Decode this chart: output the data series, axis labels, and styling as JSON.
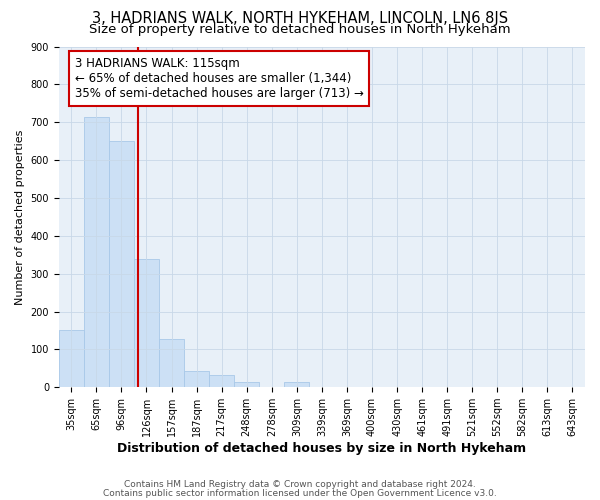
{
  "title1": "3, HADRIANS WALK, NORTH HYKEHAM, LINCOLN, LN6 8JS",
  "title2": "Size of property relative to detached houses in North Hykeham",
  "xlabel": "Distribution of detached houses by size in North Hykeham",
  "ylabel": "Number of detached properties",
  "footnote1": "Contains HM Land Registry data © Crown copyright and database right 2024.",
  "footnote2": "Contains public sector information licensed under the Open Government Licence v3.0.",
  "categories": [
    "35sqm",
    "65sqm",
    "96sqm",
    "126sqm",
    "157sqm",
    "187sqm",
    "217sqm",
    "248sqm",
    "278sqm",
    "309sqm",
    "339sqm",
    "369sqm",
    "400sqm",
    "430sqm",
    "461sqm",
    "491sqm",
    "521sqm",
    "552sqm",
    "582sqm",
    "613sqm",
    "643sqm"
  ],
  "values": [
    150,
    715,
    650,
    340,
    128,
    43,
    32,
    15,
    0,
    15,
    0,
    0,
    0,
    0,
    0,
    0,
    0,
    0,
    0,
    0,
    0
  ],
  "bar_color": "#cce0f5",
  "bar_edge_color": "#a8c8e8",
  "vline_x": 2.67,
  "vline_color": "#cc0000",
  "annotation_line1": "3 HADRIANS WALK: 115sqm",
  "annotation_line2": "← 65% of detached houses are smaller (1,344)",
  "annotation_line3": "35% of semi-detached houses are larger (713) →",
  "annotation_box_color": "#cc0000",
  "annotation_box_fill": "#ffffff",
  "ylim": [
    0,
    900
  ],
  "yticks": [
    0,
    100,
    200,
    300,
    400,
    500,
    600,
    700,
    800,
    900
  ],
  "grid_color": "#c8d8e8",
  "bg_color": "#e8f0f8",
  "title1_fontsize": 10.5,
  "title2_fontsize": 9.5,
  "xlabel_fontsize": 9,
  "ylabel_fontsize": 8,
  "tick_fontsize": 7,
  "annotation_fontsize": 8.5,
  "footnote_fontsize": 6.5
}
